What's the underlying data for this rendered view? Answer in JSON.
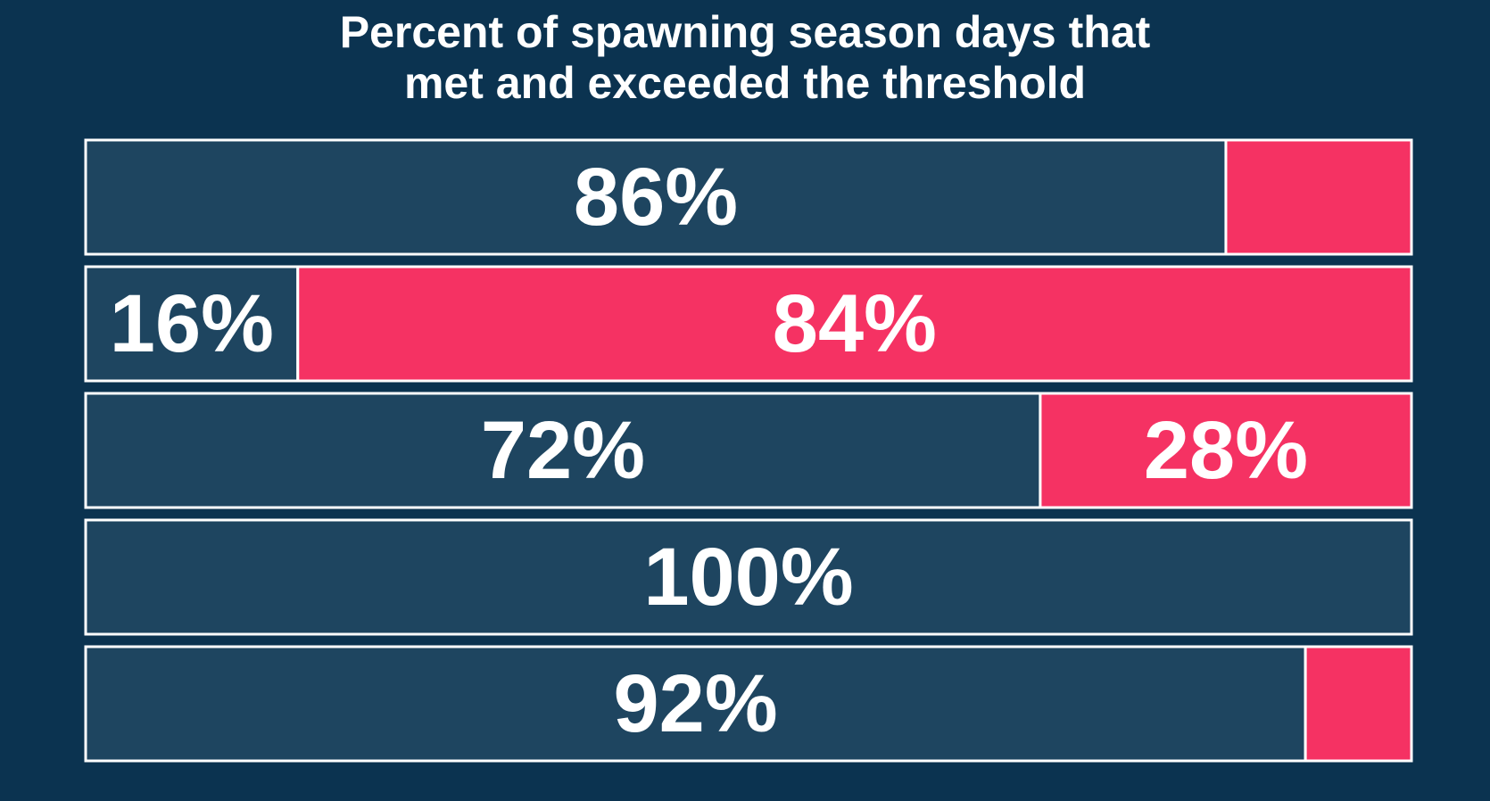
{
  "chart_data": {
    "type": "bar",
    "orientation": "horizontal",
    "stacked": true,
    "title_lines": [
      "Percent of spawning season days that",
      "met and exceeded the threshold"
    ],
    "xlim": [
      0,
      100
    ],
    "grid": false,
    "legend": "none",
    "series": [
      {
        "color": "#1e4560",
        "values": [
          86,
          16,
          72,
          100,
          92
        ],
        "labels": [
          "86%",
          "16%",
          "72%",
          "100%",
          "92%"
        ]
      },
      {
        "color": "#f53263",
        "values": [
          14,
          84,
          28,
          0,
          8
        ],
        "labels": [
          "",
          "84%",
          "28%",
          "",
          ""
        ]
      }
    ],
    "colors": {
      "background": "#0b3350",
      "border": "#ffffff",
      "text": "#ffffff"
    }
  }
}
